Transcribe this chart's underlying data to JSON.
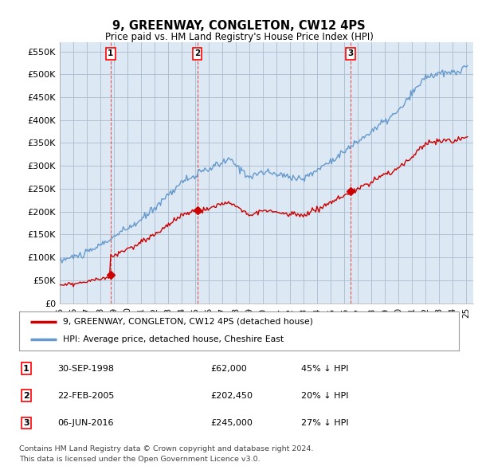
{
  "title": "9, GREENWAY, CONGLETON, CW12 4PS",
  "subtitle": "Price paid vs. HM Land Registry's House Price Index (HPI)",
  "ylabel_ticks": [
    "£0",
    "£50K",
    "£100K",
    "£150K",
    "£200K",
    "£250K",
    "£300K",
    "£350K",
    "£400K",
    "£450K",
    "£500K",
    "£550K"
  ],
  "ytick_values": [
    0,
    50000,
    100000,
    150000,
    200000,
    250000,
    300000,
    350000,
    400000,
    450000,
    500000,
    550000
  ],
  "xlim_start": 1995.0,
  "xlim_end": 2025.5,
  "ylim": [
    0,
    570000
  ],
  "sales": [
    {
      "label": "1",
      "date": 1998.75,
      "price": 62000
    },
    {
      "label": "2",
      "date": 2005.14,
      "price": 202450
    },
    {
      "label": "3",
      "date": 2016.43,
      "price": 245000
    }
  ],
  "legend_entries": [
    "9, GREENWAY, CONGLETON, CW12 4PS (detached house)",
    "HPI: Average price, detached house, Cheshire East"
  ],
  "table_rows": [
    {
      "num": "1",
      "date": "30-SEP-1998",
      "price": "£62,000",
      "hpi": "45% ↓ HPI"
    },
    {
      "num": "2",
      "date": "22-FEB-2005",
      "price": "£202,450",
      "hpi": "20% ↓ HPI"
    },
    {
      "num": "3",
      "date": "06-JUN-2016",
      "price": "£245,000",
      "hpi": "27% ↓ HPI"
    }
  ],
  "footnote1": "Contains HM Land Registry data © Crown copyright and database right 2024.",
  "footnote2": "This data is licensed under the Open Government Licence v3.0.",
  "line_color_red": "#cc0000",
  "line_color_blue": "#6699cc",
  "chart_bg": "#dce9f5",
  "vline_color": "#dd4444",
  "grid_color": "#aabbcc",
  "background_color": "#ffffff"
}
